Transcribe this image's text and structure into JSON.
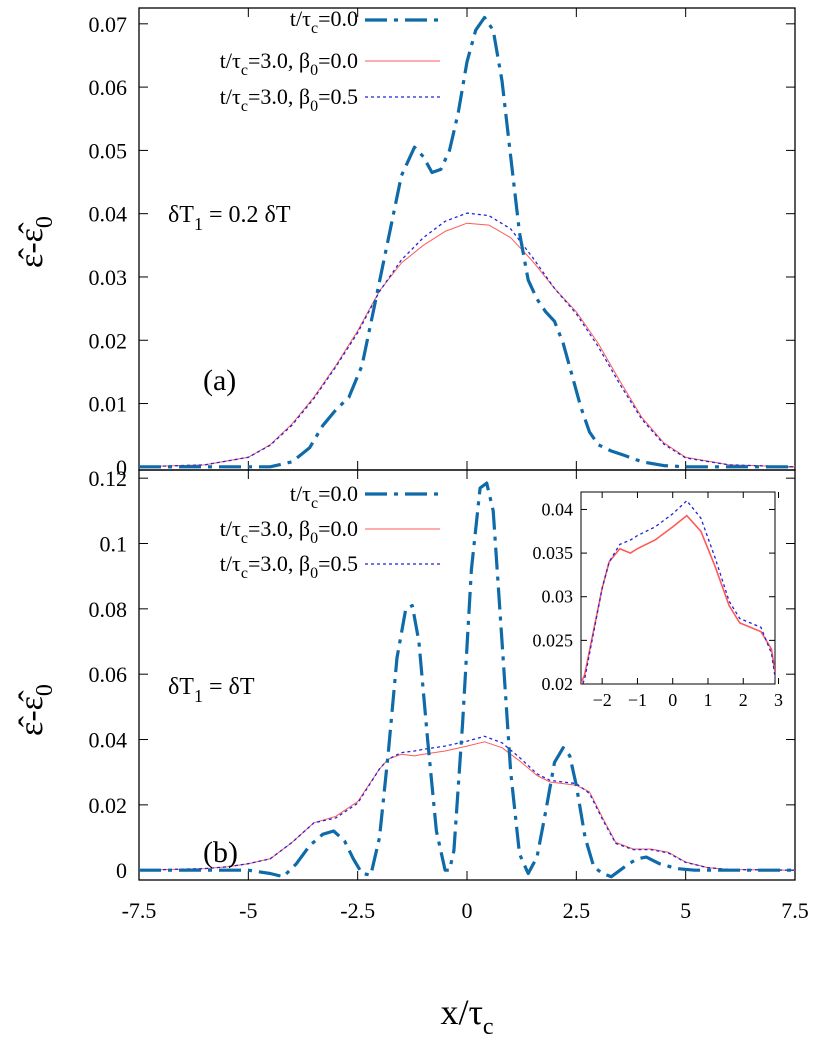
{
  "colors": {
    "initial": "#0e6aa8",
    "beta0": "#ff5a5a",
    "beta05": "#2222dd"
  },
  "x_axis": {
    "label_main": "x/τ",
    "label_sub": "c",
    "ticks": [
      -7.5,
      -5,
      -2.5,
      0,
      2.5,
      5,
      7.5
    ],
    "tick_labels": [
      "-7.5",
      "-5",
      "-2.5",
      "0",
      "2.5",
      "5",
      "7.5"
    ]
  },
  "chart_data": [
    {
      "type": "line",
      "panel_label": "(a)",
      "note": {
        "main": "δT",
        "sub": "1",
        "rest": " = 0.2 δT"
      },
      "ylabel": {
        "main": "ε̂-ε̂",
        "sub": "0"
      },
      "xlim": [
        -7.5,
        7.5
      ],
      "ylim": [
        -0.0005,
        0.0725
      ],
      "yticks": [
        0,
        0.01,
        0.02,
        0.03,
        0.04,
        0.05,
        0.06,
        0.07
      ],
      "ytick_labels": [
        "0",
        "0.01",
        "0.02",
        "0.03",
        "0.04",
        "0.05",
        "0.06",
        "0.07"
      ],
      "legend": [
        {
          "main": "t/τ",
          "sub": "c",
          "rest": "=0.0"
        },
        {
          "main": "t/τ",
          "sub": "c",
          "rest": "=3.0, β",
          "sub2": "0",
          "rest2": "=0.0"
        },
        {
          "main": "t/τ",
          "sub": "c",
          "rest": "=3.0, β",
          "sub2": "0",
          "rest2": "=0.5"
        }
      ],
      "series": [
        {
          "x": [
            -7.5,
            -6,
            -5,
            -4.5,
            -4,
            -3.6,
            -3.3,
            -3,
            -2.7,
            -2.4,
            -2.1,
            -1.8,
            -1.5,
            -1.2,
            -1,
            -0.8,
            -0.6,
            -0.4,
            -0.2,
            0,
            0.2,
            0.4,
            0.6,
            0.8,
            1,
            1.2,
            1.4,
            1.6,
            1.8,
            2,
            2.2,
            2.4,
            2.6,
            2.8,
            3,
            3.3,
            3.6,
            4,
            4.5,
            5,
            6,
            7.5
          ],
          "y": [
            0,
            0,
            0,
            0,
            0.0008,
            0.003,
            0.0065,
            0.009,
            0.011,
            0.016,
            0.026,
            0.036,
            0.046,
            0.0505,
            0.049,
            0.0465,
            0.047,
            0.05,
            0.056,
            0.064,
            0.069,
            0.071,
            0.069,
            0.061,
            0.049,
            0.037,
            0.0295,
            0.0265,
            0.0245,
            0.023,
            0.0195,
            0.0145,
            0.0095,
            0.0055,
            0.0035,
            0.0025,
            0.0018,
            0.0008,
            0.0002,
            0,
            0,
            0
          ]
        },
        {
          "x": [
            -7.5,
            -6,
            -5,
            -4.5,
            -4,
            -3.5,
            -3,
            -2.5,
            -2,
            -1.5,
            -1,
            -0.5,
            0,
            0.5,
            1,
            1.5,
            2,
            2.5,
            3,
            3.5,
            4,
            4.5,
            5,
            6,
            7.5
          ],
          "y": [
            0,
            0.0003,
            0.0015,
            0.0035,
            0.0068,
            0.011,
            0.016,
            0.0215,
            0.0278,
            0.0322,
            0.035,
            0.0372,
            0.0385,
            0.0382,
            0.0362,
            0.0325,
            0.0282,
            0.0245,
            0.0195,
            0.0135,
            0.0078,
            0.0038,
            0.0015,
            0.0003,
            0
          ]
        },
        {
          "x": [
            -7.5,
            -6,
            -5,
            -4.5,
            -4,
            -3.5,
            -3,
            -2.5,
            -2,
            -1.5,
            -1,
            -0.5,
            0,
            0.5,
            1,
            1.5,
            2,
            2.5,
            3,
            3.5,
            4,
            4.5,
            5,
            6,
            7.5
          ],
          "y": [
            0,
            0.0003,
            0.0015,
            0.0034,
            0.0066,
            0.0108,
            0.0158,
            0.0212,
            0.0277,
            0.0327,
            0.0362,
            0.0388,
            0.0401,
            0.0397,
            0.0376,
            0.0331,
            0.0282,
            0.0242,
            0.019,
            0.013,
            0.0075,
            0.0036,
            0.0014,
            0.0003,
            0
          ]
        }
      ]
    },
    {
      "type": "line",
      "panel_label": "(b)",
      "note": {
        "main": "δT",
        "sub": "1",
        "rest": " = δT"
      },
      "ylabel": {
        "main": "ε̂-ε̂",
        "sub": "0"
      },
      "xlim": [
        -7.5,
        7.5
      ],
      "ylim": [
        -0.003,
        0.1225
      ],
      "yticks": [
        0,
        0.02,
        0.04,
        0.06,
        0.08,
        0.1,
        0.12
      ],
      "ytick_labels": [
        "0",
        "0.02",
        "0.04",
        "0.06",
        "0.08",
        "0.1",
        "0.12"
      ],
      "legend": [
        {
          "main": "t/τ",
          "sub": "c",
          "rest": "=0.0"
        },
        {
          "main": "t/τ",
          "sub": "c",
          "rest": "=3.0, β",
          "sub2": "0",
          "rest2": "=0.0"
        },
        {
          "main": "t/τ",
          "sub": "c",
          "rest": "=3.0, β",
          "sub2": "0",
          "rest2": "=0.5"
        }
      ],
      "series": [
        {
          "x": [
            -7.5,
            -5,
            -4.5,
            -4.2,
            -3.9,
            -3.6,
            -3.3,
            -3.05,
            -2.8,
            -2.6,
            -2.4,
            -2.2,
            -2,
            -1.8,
            -1.6,
            -1.4,
            -1.25,
            -1.1,
            -0.9,
            -0.7,
            -0.5,
            -0.4,
            -0.3,
            -0.1,
            0.1,
            0.3,
            0.45,
            0.6,
            0.8,
            1,
            1.2,
            1.4,
            1.6,
            1.8,
            2,
            2.2,
            2.35,
            2.5,
            2.7,
            2.9,
            3.1,
            3.3,
            3.5,
            3.7,
            3.9,
            4.1,
            4.4,
            4.8,
            5.2,
            6,
            7.5
          ],
          "y": [
            0,
            0,
            -0.001,
            -0.002,
            0.002,
            0.0075,
            0.011,
            0.012,
            0.009,
            0.0035,
            -0.001,
            -0.0015,
            0.01,
            0.036,
            0.065,
            0.08,
            0.081,
            0.07,
            0.04,
            0.012,
            0,
            0,
            0.006,
            0.045,
            0.092,
            0.117,
            0.1185,
            0.11,
            0.07,
            0.03,
            0.005,
            -0.001,
            0.004,
            0.018,
            0.033,
            0.0375,
            0.035,
            0.026,
            0.01,
            0.001,
            -0.001,
            -0.002,
            0,
            0.002,
            0.0035,
            0.004,
            0.002,
            0.0005,
            0,
            0,
            0
          ]
        },
        {
          "x": [
            -7.5,
            -6,
            -5.5,
            -5,
            -4.5,
            -4,
            -3.5,
            -3,
            -2.5,
            -2,
            -1.8,
            -1.5,
            -1.2,
            -1,
            -0.5,
            0,
            0.4,
            0.8,
            1.2,
            1.6,
            1.9,
            2.2,
            2.5,
            2.8,
            3.1,
            3.4,
            3.8,
            4.2,
            4.6,
            5,
            5.5,
            6,
            7.5
          ],
          "y": [
            0,
            0.0005,
            0.001,
            0.002,
            0.0035,
            0.0085,
            0.0145,
            0.0165,
            0.021,
            0.031,
            0.034,
            0.0355,
            0.035,
            0.0355,
            0.0365,
            0.038,
            0.0393,
            0.0375,
            0.0335,
            0.029,
            0.027,
            0.0265,
            0.026,
            0.024,
            0.016,
            0.0085,
            0.0065,
            0.0065,
            0.0055,
            0.0025,
            0.0008,
            0.0002,
            0
          ]
        },
        {
          "x": [
            -7.5,
            -6,
            -5.5,
            -5,
            -4.5,
            -4,
            -3.5,
            -3,
            -2.5,
            -2,
            -1.8,
            -1.5,
            -1.2,
            -1,
            -0.5,
            0,
            0.4,
            0.8,
            1.2,
            1.6,
            1.9,
            2.2,
            2.5,
            2.8,
            3.1,
            3.4,
            3.8,
            4.2,
            4.6,
            5,
            5.5,
            6,
            7.5
          ],
          "y": [
            0,
            0.0005,
            0.001,
            0.002,
            0.0035,
            0.0085,
            0.0145,
            0.016,
            0.0205,
            0.031,
            0.034,
            0.036,
            0.0365,
            0.037,
            0.038,
            0.0395,
            0.041,
            0.039,
            0.0345,
            0.0295,
            0.0275,
            0.027,
            0.0265,
            0.0235,
            0.0155,
            0.0082,
            0.0063,
            0.0063,
            0.0053,
            0.0024,
            0.0008,
            0.0002,
            0
          ]
        }
      ],
      "inset": {
        "xlim": [
          -2.6,
          2.9
        ],
        "ylim": [
          0.02,
          0.042
        ],
        "xticks": [
          -2,
          -1,
          0,
          1,
          2,
          3
        ],
        "xtick_labels": [
          "−2",
          "−1",
          "0",
          "1",
          "2",
          "3"
        ],
        "yticks": [
          0.02,
          0.025,
          0.03,
          0.035,
          0.04
        ],
        "ytick_labels": [
          "0.02",
          "0.025",
          "0.03",
          "0.035",
          "0.04"
        ]
      }
    }
  ]
}
